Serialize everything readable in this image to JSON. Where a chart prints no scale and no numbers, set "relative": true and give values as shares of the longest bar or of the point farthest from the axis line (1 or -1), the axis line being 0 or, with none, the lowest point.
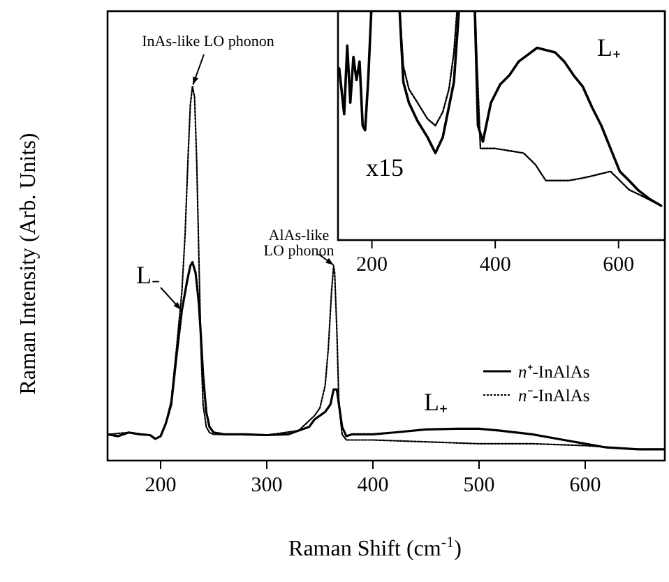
{
  "chart_data": [
    {
      "type": "line",
      "relative": true,
      "xlabel": "Raman Shift (cm$^{-1}$)",
      "ylabel": "Raman Intensity (Arb. Units)",
      "xlim": [
        150,
        675
      ],
      "xticks": [
        200,
        300,
        400,
        500,
        600
      ],
      "legend": "right",
      "annotations": [
        {
          "text": "InAs-like LO phonon",
          "x": 230,
          "y": 1
        },
        {
          "text": "AlAs-like LO phonon",
          "x": 364,
          "y": 0.52
        },
        {
          "text": "L₋",
          "x": 220,
          "y": 0.4
        },
        "L₊"
      ],
      "series": [
        {
          "name": "n⁺-InAlAs",
          "color": "#000000",
          "line_style": "solid",
          "x": [
            150,
            160,
            170,
            180,
            190,
            195,
            200,
            205,
            210,
            215,
            220,
            225,
            228,
            230,
            233,
            236,
            238,
            240,
            243,
            246,
            250,
            260,
            280,
            300,
            320,
            330,
            340,
            345,
            350,
            355,
            360,
            363,
            366,
            368,
            371,
            375,
            380,
            400,
            420,
            450,
            480,
            500,
            520,
            550,
            580,
            600,
            620,
            650,
            675
          ],
          "values": [
            0.07,
            0.065,
            0.075,
            0.07,
            0.068,
            0.058,
            0.065,
            0.1,
            0.15,
            0.28,
            0.4,
            0.48,
            0.52,
            0.53,
            0.5,
            0.42,
            0.33,
            0.23,
            0.13,
            0.09,
            0.075,
            0.07,
            0.07,
            0.068,
            0.07,
            0.08,
            0.09,
            0.11,
            0.12,
            0.13,
            0.15,
            0.19,
            0.19,
            0.15,
            0.09,
            0.065,
            0.07,
            0.07,
            0.075,
            0.083,
            0.085,
            0.085,
            0.08,
            0.07,
            0.055,
            0.045,
            0.035,
            0.03,
            0.03
          ]
        },
        {
          "name": "n⁻-InAlAs",
          "color": "#000000",
          "line_style": "dotted",
          "x": [
            150,
            170,
            190,
            195,
            200,
            205,
            210,
            215,
            220,
            223,
            226,
            228,
            230,
            232,
            234,
            236,
            238,
            240,
            243,
            246,
            250,
            300,
            330,
            345,
            350,
            355,
            358,
            361,
            363,
            364,
            366,
            368,
            371,
            375,
            400,
            450,
            500,
            550,
            600,
            650,
            675
          ],
          "values": [
            0.07,
            0.075,
            0.068,
            0.058,
            0.065,
            0.1,
            0.16,
            0.3,
            0.45,
            0.6,
            0.82,
            0.95,
            1,
            0.97,
            0.8,
            0.55,
            0.3,
            0.15,
            0.09,
            0.075,
            0.07,
            0.068,
            0.08,
            0.12,
            0.14,
            0.2,
            0.3,
            0.45,
            0.52,
            0.5,
            0.35,
            0.15,
            0.07,
            0.055,
            0.055,
            0.05,
            0.045,
            0.045,
            0.04,
            0.03,
            0.03
          ]
        }
      ]
    },
    {
      "type": "line",
      "relative": true,
      "xlim": [
        145,
        675
      ],
      "xticks": [
        200,
        400,
        600
      ],
      "annotations": [
        "x15",
        "L₊"
      ],
      "series": [
        {
          "color": "#000000",
          "line_style": "solid",
          "x": [
            147,
            155,
            160,
            165,
            170,
            175,
            180,
            185,
            189,
            194,
            199,
            200,
            244,
            245,
            251,
            260,
            274,
            290,
            303,
            315,
            333,
            341,
            342,
            366,
            367,
            372,
            380,
            393,
            408,
            423,
            438,
            453,
            468,
            482,
            497,
            512,
            527,
            542,
            557,
            572,
            587,
            602,
            617,
            631,
            650,
            669
          ],
          "values": [
            0.75,
            0.55,
            0.85,
            0.6,
            0.8,
            0.7,
            0.78,
            0.5,
            0.48,
            0.7,
            1,
            null,
            null,
            1,
            0.69,
            0.6,
            0.52,
            0.45,
            0.38,
            0.45,
            0.69,
            1,
            null,
            null,
            1,
            0.5,
            0.43,
            0.6,
            0.68,
            0.72,
            0.78,
            0.81,
            0.84,
            0.83,
            0.82,
            0.78,
            0.72,
            0.67,
            0.58,
            0.5,
            0.4,
            0.3,
            0.26,
            0.22,
            0.18,
            0.15
          ]
        },
        {
          "color": "#000000",
          "line_style": "dotted",
          "x": [
            245,
            251,
            260,
            274,
            290,
            303,
            315,
            325,
            333,
            338,
            339,
            366,
            367,
            376,
            400,
            423,
            446,
            465,
            482,
            500,
            519,
            540,
            557,
            572,
            587,
            602,
            617,
            640,
            669
          ],
          "values": [
            1,
            0.76,
            0.66,
            0.6,
            0.53,
            0.5,
            0.56,
            0.66,
            0.82,
            1,
            null,
            null,
            1,
            0.4,
            0.4,
            0.39,
            0.38,
            0.33,
            0.26,
            0.26,
            0.26,
            0.27,
            0.28,
            0.29,
            0.3,
            0.26,
            0.22,
            0.19,
            0.15
          ]
        }
      ]
    }
  ]
}
